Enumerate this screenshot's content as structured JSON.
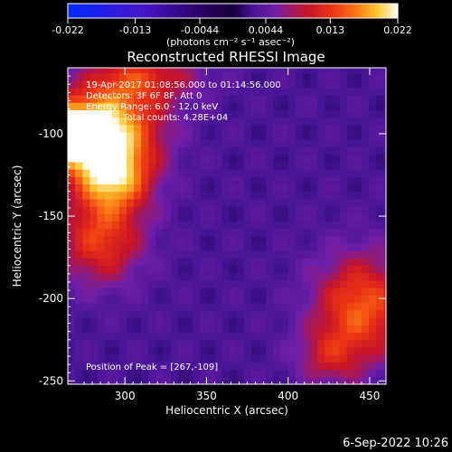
{
  "chart_data": {
    "type": "heatmap",
    "title": "Reconstructed RHESSI Image",
    "xlabel": "Heliocentric X (arcsec)",
    "ylabel": "Heliocentric Y (arcsec)",
    "xlim": [
      265,
      460
    ],
    "ylim": [
      -252,
      -60
    ],
    "xticks": [
      300,
      350,
      400,
      450
    ],
    "yticks": [
      -100,
      -150,
      -200,
      -250
    ],
    "colorbar": {
      "ticks": [
        "-0.022",
        "-0.013",
        "-0.0044",
        "0.0044",
        "0.013",
        "0.022"
      ],
      "range": [
        -0.022,
        0.022
      ],
      "units_label": "(photons cm⁻² s⁻¹ asec⁻²)"
    },
    "info": [
      "19-Apr-2017 01:08:56.000 to 01:14:56.000",
      "Detectors: 3F 6F 8F, Att 0",
      "Energy Range: 6.0 - 12.0 keV",
      "Clean    Total counts: 4.28E+04"
    ],
    "peak_label": "Position of Peak = [267,-109]",
    "peak": [
      267,
      -109
    ],
    "sources": [
      {
        "x": 267,
        "y": -100,
        "amp": 0.022,
        "sx": 18,
        "sy": 14
      },
      {
        "x": 292,
        "y": -125,
        "amp": 0.016,
        "sx": 16,
        "sy": 16
      },
      {
        "x": 298,
        "y": -90,
        "amp": 0.011,
        "sx": 20,
        "sy": 22
      },
      {
        "x": 285,
        "y": -165,
        "amp": 0.01,
        "sx": 18,
        "sy": 18
      },
      {
        "x": 445,
        "y": -205,
        "amp": 0.012,
        "sx": 20,
        "sy": 22
      },
      {
        "x": 425,
        "y": -235,
        "amp": 0.006,
        "sx": 14,
        "sy": 12
      },
      {
        "x": 315,
        "y": -65,
        "amp": 0.006,
        "sx": 24,
        "sy": 10
      }
    ],
    "background": 0.003
  },
  "footer": {
    "date": "6-Sep-2022 10:26"
  }
}
